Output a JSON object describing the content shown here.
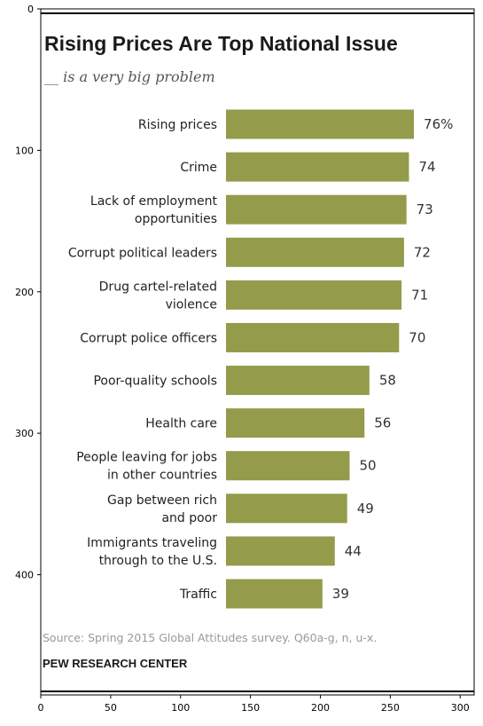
{
  "chart_data": {
    "type": "bar",
    "orientation": "horizontal",
    "title": "Rising Prices Are Top National Issue",
    "subtitle": "__ is a very big problem",
    "categories": [
      [
        "Rising prices"
      ],
      [
        "Crime"
      ],
      [
        "Lack of employment",
        "opportunities"
      ],
      [
        "Corrupt political leaders"
      ],
      [
        "Drug cartel-related",
        "violence"
      ],
      [
        "Corrupt police officers"
      ],
      [
        "Poor-quality schools"
      ],
      [
        "Health care"
      ],
      [
        "People leaving for jobs",
        "in other countries"
      ],
      [
        "Gap between rich",
        "and poor"
      ],
      [
        "Immigrants traveling",
        "through to the U.S."
      ],
      [
        "Traffic"
      ]
    ],
    "values": [
      76,
      74,
      73,
      72,
      71,
      70,
      58,
      56,
      50,
      49,
      44,
      39
    ],
    "value_labels": [
      "76%",
      "74",
      "73",
      "72",
      "71",
      "70",
      "58",
      "56",
      "50",
      "49",
      "44",
      "39"
    ],
    "bar_color": "#949b4a",
    "source": "Source: Spring 2015 Global Attitudes survey. Q60a-g, n, u-x.",
    "organization": "PEW RESEARCH CENTER",
    "axes_frame": {
      "xticks": [
        0,
        50,
        100,
        150,
        200,
        250,
        300
      ],
      "yticks": [
        0,
        100,
        200,
        300,
        400
      ],
      "xlim": [
        0,
        310
      ],
      "ylim": [
        485,
        0
      ]
    }
  }
}
